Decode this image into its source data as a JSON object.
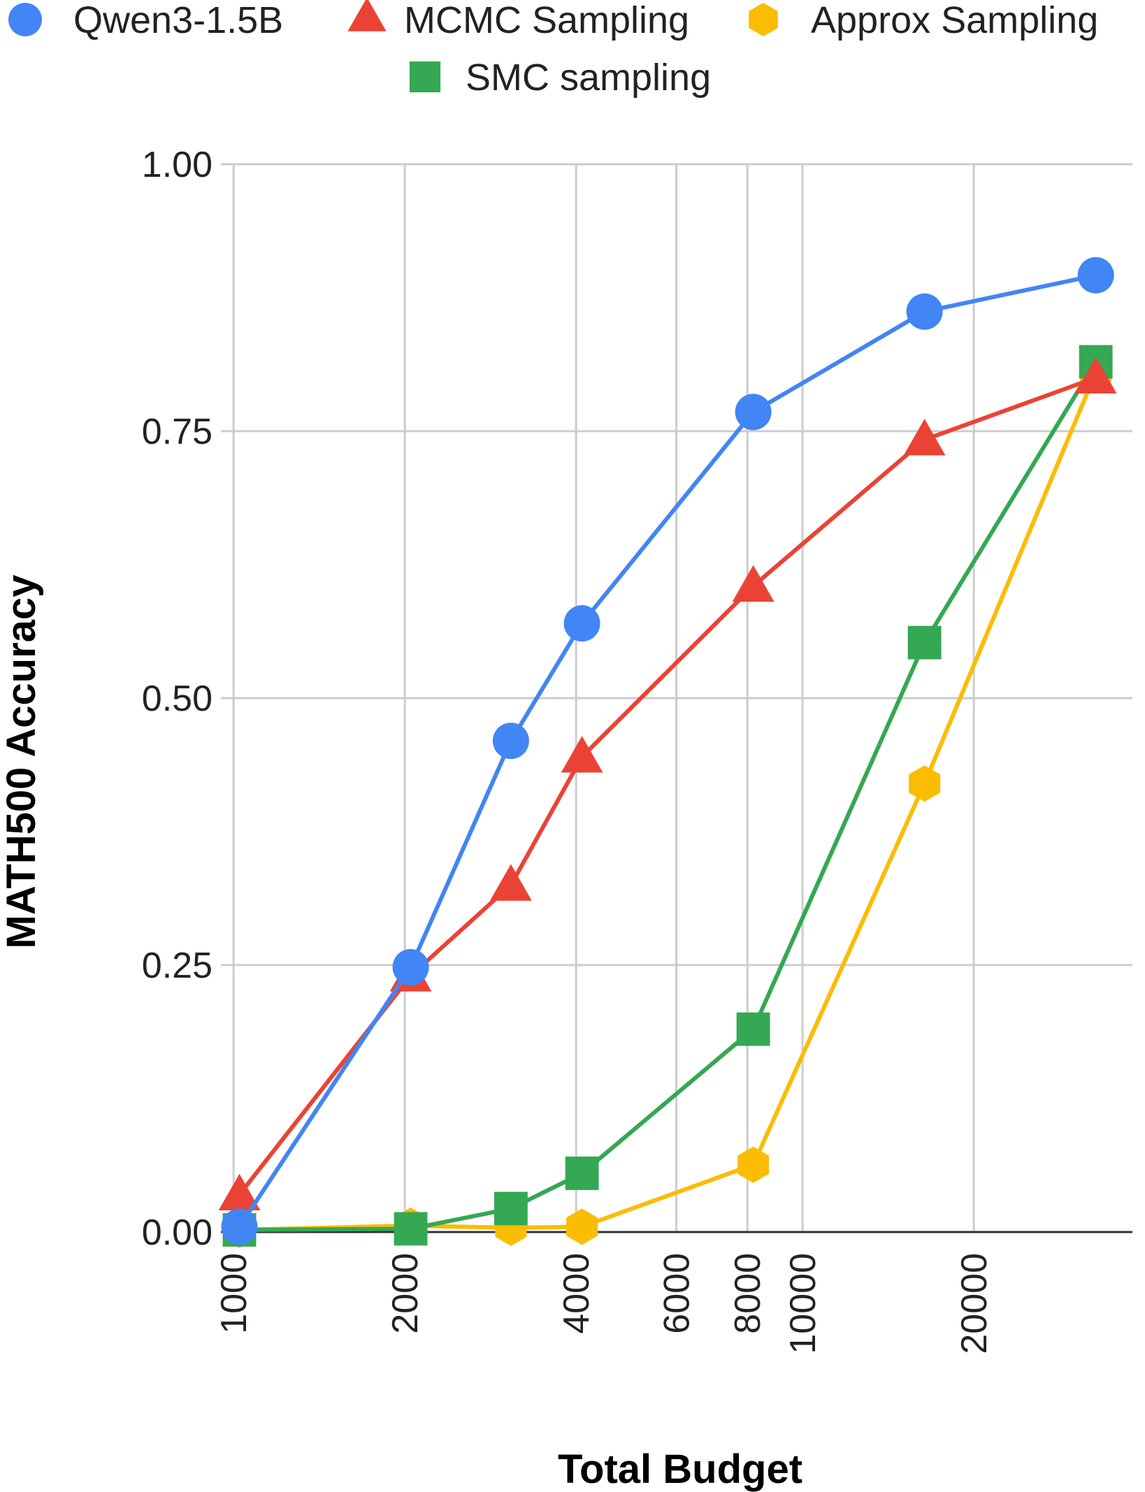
{
  "chart_data": {
    "type": "line",
    "title": "",
    "xlabel": "Total Budget",
    "ylabel": "MATH500 Accuracy",
    "x_scale": "log",
    "xlim": [
      950,
      38000
    ],
    "ylim": [
      0,
      1
    ],
    "x_ticks": [
      1000,
      2000,
      4000,
      6000,
      8000,
      10000,
      20000
    ],
    "x_tick_labels": [
      "1000",
      "2000",
      "4000",
      "6000",
      "8000",
      "10000",
      "20000"
    ],
    "y_ticks": [
      0,
      0.25,
      0.5,
      0.75,
      1
    ],
    "y_tick_labels": [
      "0.00",
      "0.25",
      "0.50",
      "0.75",
      "1.00"
    ],
    "grid": true,
    "legend_position": "top",
    "series": [
      {
        "name": "Qwen3-1.5B",
        "color": "#4285F4",
        "marker": "circle",
        "points": [
          [
            1024,
            0.005
          ],
          [
            2048,
            0.248
          ],
          [
            3072,
            0.46
          ],
          [
            4096,
            0.57
          ],
          [
            8192,
            0.768
          ],
          [
            16384,
            0.862
          ],
          [
            32768,
            0.896
          ]
        ]
      },
      {
        "name": "MCMC Sampling",
        "color": "#EA4335",
        "marker": "triangle",
        "points": [
          [
            1024,
            0.035
          ],
          [
            2048,
            0.24
          ],
          [
            3072,
            0.325
          ],
          [
            4096,
            0.445
          ],
          [
            8192,
            0.605
          ],
          [
            16384,
            0.742
          ],
          [
            32768,
            0.8
          ]
        ]
      },
      {
        "name": "Approx Sampling",
        "color": "#FBBC04",
        "marker": "hexagon",
        "points": [
          [
            1024,
            0.002
          ],
          [
            2048,
            0.006
          ],
          [
            3072,
            0.004
          ],
          [
            4096,
            0.005
          ],
          [
            8192,
            0.063
          ],
          [
            16384,
            0.42
          ],
          [
            32768,
            0.805
          ]
        ]
      },
      {
        "name": "SMC sampling",
        "color": "#34A853",
        "marker": "square",
        "points": [
          [
            1024,
            0.002
          ],
          [
            2048,
            0.003
          ],
          [
            3072,
            0.022
          ],
          [
            4096,
            0.055
          ],
          [
            8192,
            0.19
          ],
          [
            16384,
            0.552
          ],
          [
            32768,
            0.815
          ]
        ]
      }
    ]
  }
}
